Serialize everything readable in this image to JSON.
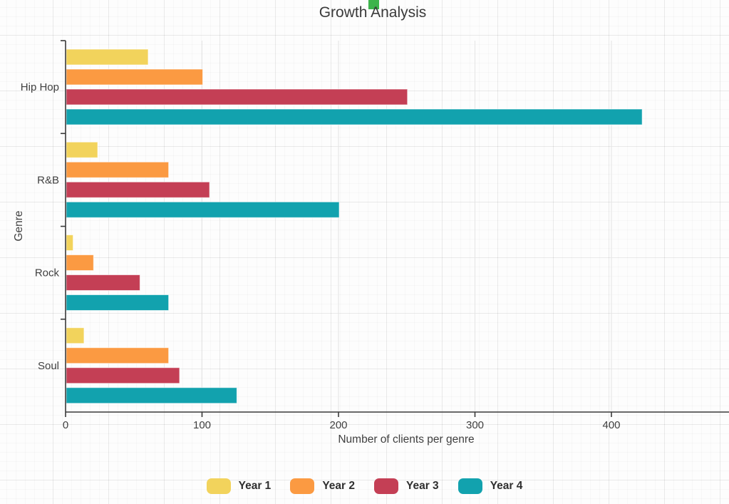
{
  "title": "Growth Analysis",
  "title_marker_color": "#3db44b",
  "axis_color": "#3a3a3a",
  "tick_label_color": "#3f3f3f",
  "gridline_color": "#e4e4e4",
  "bar_stroke_color": "rgba(255,255,255,0.6)",
  "chart_data": {
    "type": "bar",
    "orientation": "horizontal",
    "title": "Growth Analysis",
    "xlabel": "Number of clients per genre",
    "ylabel": "Genre",
    "categories": [
      "Hip Hop",
      "R&B",
      "Rock",
      "Soul"
    ],
    "series": [
      {
        "name": "Year 1",
        "color": "#f2d35c",
        "values": [
          60,
          23,
          5,
          13
        ]
      },
      {
        "name": "Year 2",
        "color": "#fb9a42",
        "values": [
          100,
          75,
          20,
          75
        ]
      },
      {
        "name": "Year 3",
        "color": "#c43f55",
        "values": [
          250,
          105,
          54,
          83
        ]
      },
      {
        "name": "Year 4",
        "color": "#12a2ae",
        "values": [
          422,
          200,
          75,
          125
        ]
      }
    ],
    "x_ticks": [
      0,
      100,
      200,
      300,
      400
    ],
    "xlim": [
      0,
      486
    ],
    "grid": "vertical-at-x-ticks",
    "legend_position": "bottom"
  }
}
